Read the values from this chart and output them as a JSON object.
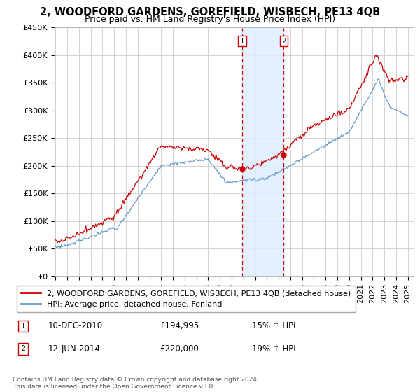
{
  "title": "2, WOODFORD GARDENS, GOREFIELD, WISBECH, PE13 4QB",
  "subtitle": "Price paid vs. HM Land Registry's House Price Index (HPI)",
  "ylim": [
    0,
    450000
  ],
  "yticks": [
    0,
    50000,
    100000,
    150000,
    200000,
    250000,
    300000,
    350000,
    400000,
    450000
  ],
  "ytick_labels": [
    "£0",
    "£50K",
    "£100K",
    "£150K",
    "£200K",
    "£250K",
    "£300K",
    "£350K",
    "£400K",
    "£450K"
  ],
  "background_color": "#ffffff",
  "plot_bg_color": "#ffffff",
  "grid_color": "#cccccc",
  "sale1_date_num": 2010.92,
  "sale1_label": "1",
  "sale1_price": 194995,
  "sale1_text": "10-DEC-2010",
  "sale1_pct": "15% ↑ HPI",
  "sale2_date_num": 2014.44,
  "sale2_label": "2",
  "sale2_price": 220000,
  "sale2_text": "12-JUN-2014",
  "sale2_pct": "19% ↑ HPI",
  "line1_color": "#cc0000",
  "line2_color": "#6699cc",
  "shade_color": "#ddeeff",
  "vline_color": "#cc0000",
  "legend1": "2, WOODFORD GARDENS, GOREFIELD, WISBECH, PE13 4QB (detached house)",
  "legend2": "HPI: Average price, detached house, Fenland",
  "footer": "Contains HM Land Registry data © Crown copyright and database right 2024.\nThis data is licensed under the Open Government Licence v3.0.",
  "title_fontsize": 10.5,
  "subtitle_fontsize": 9,
  "tick_fontsize": 8,
  "legend_fontsize": 8,
  "table_fontsize": 8.5,
  "footer_fontsize": 6.5
}
